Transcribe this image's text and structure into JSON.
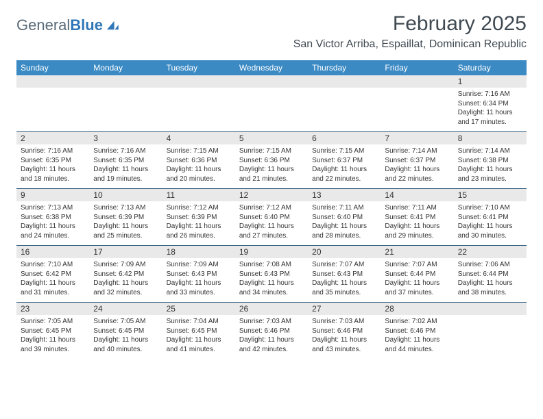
{
  "logo": {
    "text1": "General",
    "text2": "Blue",
    "shape_color": "#2f77b7"
  },
  "title": "February 2025",
  "location": "San Victor Arriba, Espaillat, Dominican Republic",
  "header_bg": "#3b8ac4",
  "daynum_bg": "#e9e9ea",
  "rule_color": "#2f5b7d",
  "days_of_week": [
    "Sunday",
    "Monday",
    "Tuesday",
    "Wednesday",
    "Thursday",
    "Friday",
    "Saturday"
  ],
  "weeks": [
    [
      null,
      null,
      null,
      null,
      null,
      null,
      {
        "n": "1",
        "sr": "7:16 AM",
        "ss": "6:34 PM",
        "dl": "11 hours and 17 minutes."
      }
    ],
    [
      {
        "n": "2",
        "sr": "7:16 AM",
        "ss": "6:35 PM",
        "dl": "11 hours and 18 minutes."
      },
      {
        "n": "3",
        "sr": "7:16 AM",
        "ss": "6:35 PM",
        "dl": "11 hours and 19 minutes."
      },
      {
        "n": "4",
        "sr": "7:15 AM",
        "ss": "6:36 PM",
        "dl": "11 hours and 20 minutes."
      },
      {
        "n": "5",
        "sr": "7:15 AM",
        "ss": "6:36 PM",
        "dl": "11 hours and 21 minutes."
      },
      {
        "n": "6",
        "sr": "7:15 AM",
        "ss": "6:37 PM",
        "dl": "11 hours and 22 minutes."
      },
      {
        "n": "7",
        "sr": "7:14 AM",
        "ss": "6:37 PM",
        "dl": "11 hours and 22 minutes."
      },
      {
        "n": "8",
        "sr": "7:14 AM",
        "ss": "6:38 PM",
        "dl": "11 hours and 23 minutes."
      }
    ],
    [
      {
        "n": "9",
        "sr": "7:13 AM",
        "ss": "6:38 PM",
        "dl": "11 hours and 24 minutes."
      },
      {
        "n": "10",
        "sr": "7:13 AM",
        "ss": "6:39 PM",
        "dl": "11 hours and 25 minutes."
      },
      {
        "n": "11",
        "sr": "7:12 AM",
        "ss": "6:39 PM",
        "dl": "11 hours and 26 minutes."
      },
      {
        "n": "12",
        "sr": "7:12 AM",
        "ss": "6:40 PM",
        "dl": "11 hours and 27 minutes."
      },
      {
        "n": "13",
        "sr": "7:11 AM",
        "ss": "6:40 PM",
        "dl": "11 hours and 28 minutes."
      },
      {
        "n": "14",
        "sr": "7:11 AM",
        "ss": "6:41 PM",
        "dl": "11 hours and 29 minutes."
      },
      {
        "n": "15",
        "sr": "7:10 AM",
        "ss": "6:41 PM",
        "dl": "11 hours and 30 minutes."
      }
    ],
    [
      {
        "n": "16",
        "sr": "7:10 AM",
        "ss": "6:42 PM",
        "dl": "11 hours and 31 minutes."
      },
      {
        "n": "17",
        "sr": "7:09 AM",
        "ss": "6:42 PM",
        "dl": "11 hours and 32 minutes."
      },
      {
        "n": "18",
        "sr": "7:09 AM",
        "ss": "6:43 PM",
        "dl": "11 hours and 33 minutes."
      },
      {
        "n": "19",
        "sr": "7:08 AM",
        "ss": "6:43 PM",
        "dl": "11 hours and 34 minutes."
      },
      {
        "n": "20",
        "sr": "7:07 AM",
        "ss": "6:43 PM",
        "dl": "11 hours and 35 minutes."
      },
      {
        "n": "21",
        "sr": "7:07 AM",
        "ss": "6:44 PM",
        "dl": "11 hours and 37 minutes."
      },
      {
        "n": "22",
        "sr": "7:06 AM",
        "ss": "6:44 PM",
        "dl": "11 hours and 38 minutes."
      }
    ],
    [
      {
        "n": "23",
        "sr": "7:05 AM",
        "ss": "6:45 PM",
        "dl": "11 hours and 39 minutes."
      },
      {
        "n": "24",
        "sr": "7:05 AM",
        "ss": "6:45 PM",
        "dl": "11 hours and 40 minutes."
      },
      {
        "n": "25",
        "sr": "7:04 AM",
        "ss": "6:45 PM",
        "dl": "11 hours and 41 minutes."
      },
      {
        "n": "26",
        "sr": "7:03 AM",
        "ss": "6:46 PM",
        "dl": "11 hours and 42 minutes."
      },
      {
        "n": "27",
        "sr": "7:03 AM",
        "ss": "6:46 PM",
        "dl": "11 hours and 43 minutes."
      },
      {
        "n": "28",
        "sr": "7:02 AM",
        "ss": "6:46 PM",
        "dl": "11 hours and 44 minutes."
      },
      null
    ]
  ],
  "labels": {
    "sunrise": "Sunrise:",
    "sunset": "Sunset:",
    "daylight": "Daylight:"
  }
}
